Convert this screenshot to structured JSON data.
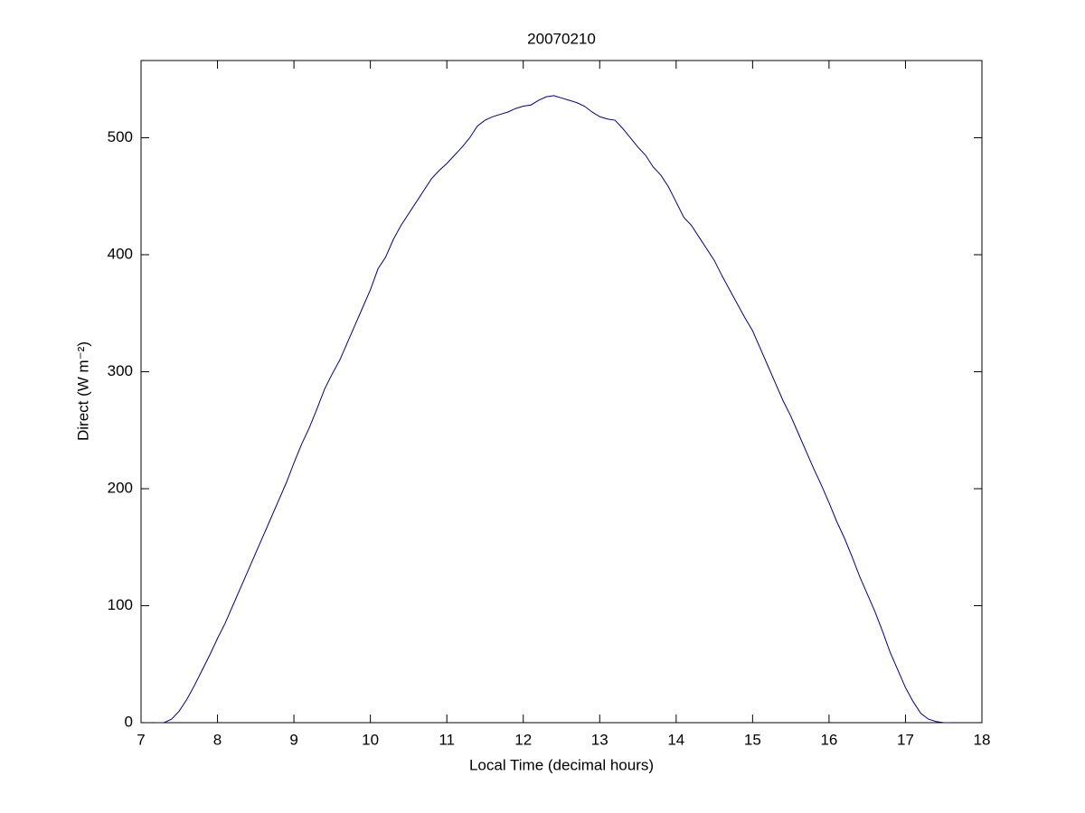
{
  "chart_data": {
    "type": "line",
    "title": "20070210",
    "x_label": "Local Time (decimal hours)",
    "y_label": "Direct (W m⁻²)",
    "x": [
      7.2,
      7.3,
      7.4,
      7.5,
      7.6,
      7.7,
      7.8,
      7.9,
      8.0,
      8.1,
      8.2,
      8.3,
      8.4,
      8.5,
      8.6,
      8.7,
      8.8,
      8.9,
      9.0,
      9.1,
      9.2,
      9.3,
      9.4,
      9.5,
      9.6,
      9.7,
      9.8,
      9.9,
      10.0,
      10.1,
      10.2,
      10.3,
      10.4,
      10.5,
      10.6,
      10.7,
      10.8,
      10.9,
      11.0,
      11.1,
      11.2,
      11.3,
      11.4,
      11.5,
      11.6,
      11.7,
      11.8,
      11.9,
      12.0,
      12.1,
      12.2,
      12.3,
      12.4,
      12.5,
      12.6,
      12.7,
      12.8,
      12.9,
      13.0,
      13.1,
      13.2,
      13.3,
      13.4,
      13.5,
      13.6,
      13.7,
      13.8,
      13.9,
      14.0,
      14.1,
      14.2,
      14.3,
      14.4,
      14.5,
      14.6,
      14.7,
      14.8,
      14.9,
      15.0,
      15.1,
      15.2,
      15.3,
      15.4,
      15.5,
      15.6,
      15.7,
      15.8,
      15.9,
      16.0,
      16.1,
      16.2,
      16.3,
      16.4,
      16.5,
      16.6,
      16.7,
      16.8,
      16.9,
      17.0,
      17.1,
      17.2,
      17.3,
      17.4,
      17.5,
      17.6
    ],
    "series": [
      {
        "name": "Direct",
        "color": "#00008b",
        "values": [
          0,
          0,
          3,
          10,
          20,
          32,
          45,
          58,
          72,
          85,
          100,
          115,
          130,
          145,
          160,
          175,
          190,
          205,
          222,
          238,
          252,
          268,
          285,
          298,
          310,
          325,
          340,
          355,
          370,
          388,
          398,
          413,
          425,
          435,
          445,
          455,
          465,
          472,
          478,
          485,
          492,
          500,
          510,
          515,
          518,
          520,
          522,
          525,
          527,
          528,
          532,
          535,
          536,
          534,
          532,
          530,
          527,
          522,
          518,
          516,
          515,
          508,
          500,
          492,
          485,
          475,
          468,
          458,
          445,
          432,
          425,
          415,
          405,
          395,
          382,
          370,
          358,
          346,
          335,
          320,
          305,
          290,
          275,
          262,
          247,
          232,
          217,
          203,
          188,
          172,
          158,
          142,
          125,
          110,
          95,
          78,
          60,
          45,
          30,
          18,
          8,
          3,
          1,
          0,
          0
        ]
      }
    ],
    "xlim": [
      7,
      18
    ],
    "ylim": [
      0,
      566
    ],
    "xticks": [
      7,
      8,
      9,
      10,
      11,
      12,
      13,
      14,
      15,
      16,
      17,
      18
    ],
    "yticks": [
      0,
      100,
      200,
      300,
      400,
      500
    ]
  }
}
